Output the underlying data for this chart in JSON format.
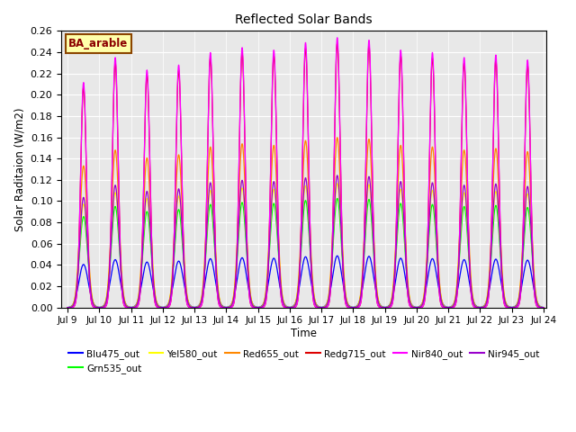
{
  "title": "Reflected Solar Bands",
  "xlabel": "Time",
  "ylabel": "Solar Raditaion (W/m2)",
  "annotation": "BA_arable",
  "start_day": 9,
  "end_day": 24,
  "ylim": [
    0.0,
    0.26
  ],
  "yticks": [
    0.0,
    0.02,
    0.04,
    0.06,
    0.08,
    0.1,
    0.12,
    0.14,
    0.16,
    0.18,
    0.2,
    0.22,
    0.24,
    0.26
  ],
  "bands": [
    {
      "name": "Blu475_out",
      "color": "#0000ff",
      "peak": 0.045,
      "sigma": 3.5
    },
    {
      "name": "Grn535_out",
      "color": "#00ff00",
      "peak": 0.095,
      "sigma": 3.0
    },
    {
      "name": "Yel580_out",
      "color": "#ffff00",
      "peak": 0.108,
      "sigma": 3.0
    },
    {
      "name": "Red655_out",
      "color": "#ff8800",
      "peak": 0.148,
      "sigma": 2.8
    },
    {
      "name": "Redg715_out",
      "color": "#dd0000",
      "peak": 0.23,
      "sigma": 2.2
    },
    {
      "name": "Nir840_out",
      "color": "#ff00ff",
      "peak": 0.235,
      "sigma": 2.2
    },
    {
      "name": "Nir945_out",
      "color": "#9900cc",
      "peak": 0.115,
      "sigma": 2.8
    }
  ],
  "n_days": 15,
  "points_per_day": 144,
  "peak_hour": 12.0,
  "background_color": "#e8e8e8",
  "grid_color": "white",
  "figsize": [
    6.4,
    4.8
  ],
  "dpi": 100
}
